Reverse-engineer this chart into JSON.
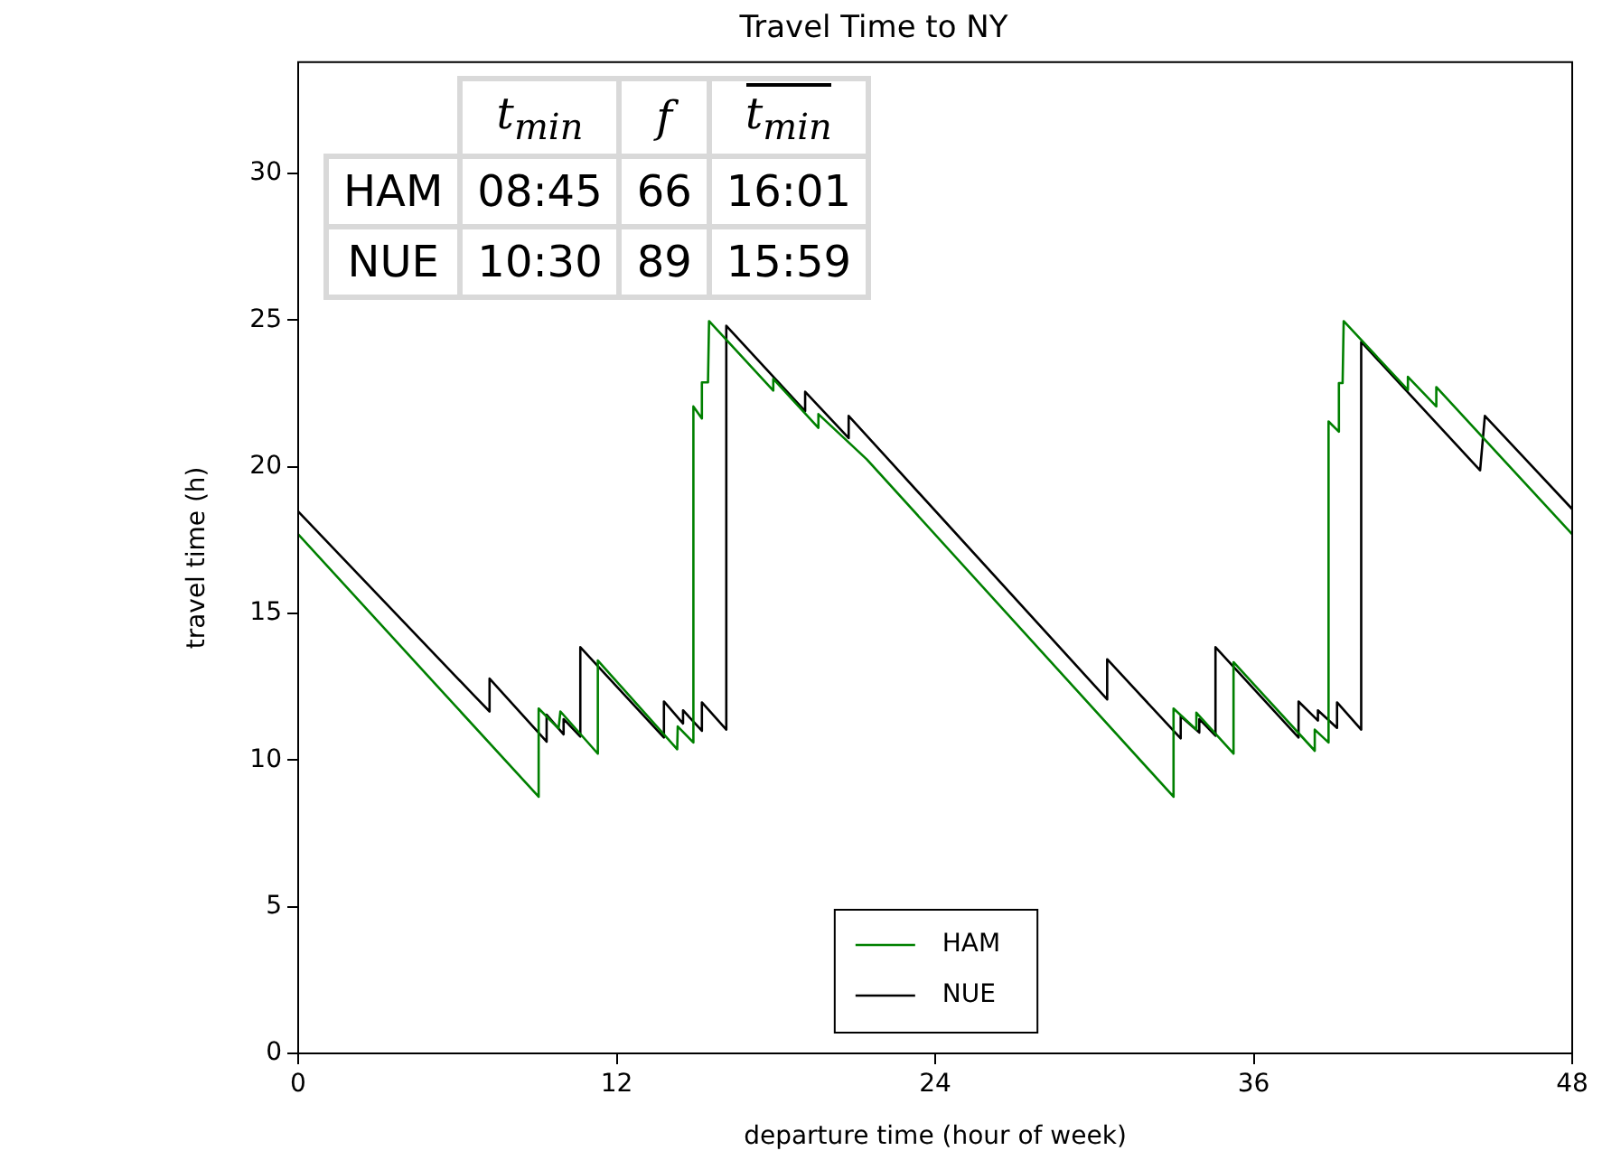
{
  "chart_data": {
    "type": "line",
    "title": "Travel Time to NY",
    "xlabel": "departure time (hour of week)",
    "ylabel": "travel time (h)",
    "xlim": [
      0,
      48
    ],
    "xticks": [
      0,
      12,
      24,
      36,
      48
    ],
    "ylim": [
      0,
      33.8
    ],
    "yticks": [
      0,
      5,
      10,
      15,
      20,
      25,
      30
    ],
    "grid": false,
    "legend": "bottom",
    "series": [
      {
        "name": "HAM",
        "color": "#008000",
        "x": [
          0,
          9.06,
          9.06,
          9.81,
          9.88,
          11.29,
          11.29,
          14.28,
          14.3,
          14.89,
          14.89,
          15.21,
          15.21,
          15.44,
          15.48,
          17.9,
          17.9,
          19.6,
          19.6,
          21.42,
          32.98,
          32.98,
          33.84,
          33.84,
          35.24,
          35.24,
          38.3,
          38.3,
          38.82,
          38.82,
          39.21,
          39.21,
          39.35,
          39.39,
          41.81,
          41.81,
          42.88,
          42.88,
          48
        ],
        "values": [
          17.7,
          8.75,
          11.76,
          11.08,
          11.66,
          10.22,
          13.4,
          10.37,
          11.15,
          10.6,
          22.06,
          21.65,
          22.88,
          22.88,
          24.97,
          22.6,
          23.0,
          21.33,
          21.8,
          20.26,
          8.75,
          11.76,
          11.04,
          11.62,
          10.22,
          13.34,
          10.32,
          11.04,
          10.6,
          21.55,
          21.2,
          22.86,
          22.86,
          24.97,
          22.62,
          23.07,
          22.06,
          22.72,
          17.7
        ]
      },
      {
        "name": "NUE",
        "color": "#000000",
        "x": [
          0,
          6.62,
          7.21,
          7.21,
          9.36,
          9.36,
          10.0,
          10.0,
          10.63,
          10.63,
          13.78,
          13.78,
          14.5,
          14.5,
          15.21,
          15.21,
          16.13,
          16.13,
          19.1,
          19.1,
          20.74,
          20.74,
          30.48,
          30.48,
          33.25,
          33.25,
          33.95,
          33.95,
          34.56,
          34.56,
          37.69,
          37.69,
          38.42,
          38.42,
          39.14,
          39.14,
          40.05,
          40.05,
          44.53,
          44.71,
          48
        ],
        "values": [
          18.48,
          12.21,
          11.66,
          12.78,
          10.63,
          11.55,
          10.88,
          11.4,
          10.8,
          13.85,
          10.77,
          12.0,
          11.25,
          11.7,
          11.0,
          11.97,
          11.04,
          24.81,
          21.9,
          22.56,
          20.98,
          21.74,
          12.07,
          13.44,
          10.74,
          11.5,
          10.94,
          11.4,
          10.83,
          13.85,
          10.77,
          12.0,
          11.35,
          11.7,
          11.1,
          11.97,
          11.04,
          24.26,
          19.88,
          21.74,
          18.56
        ]
      }
    ],
    "annotations": [
      "t$_{min}$",
      "f",
      "t$_{min}$",
      "HAM",
      "08:45",
      "66",
      "16:01",
      "NUE",
      "10:30",
      "89",
      "15:59"
    ]
  }
}
